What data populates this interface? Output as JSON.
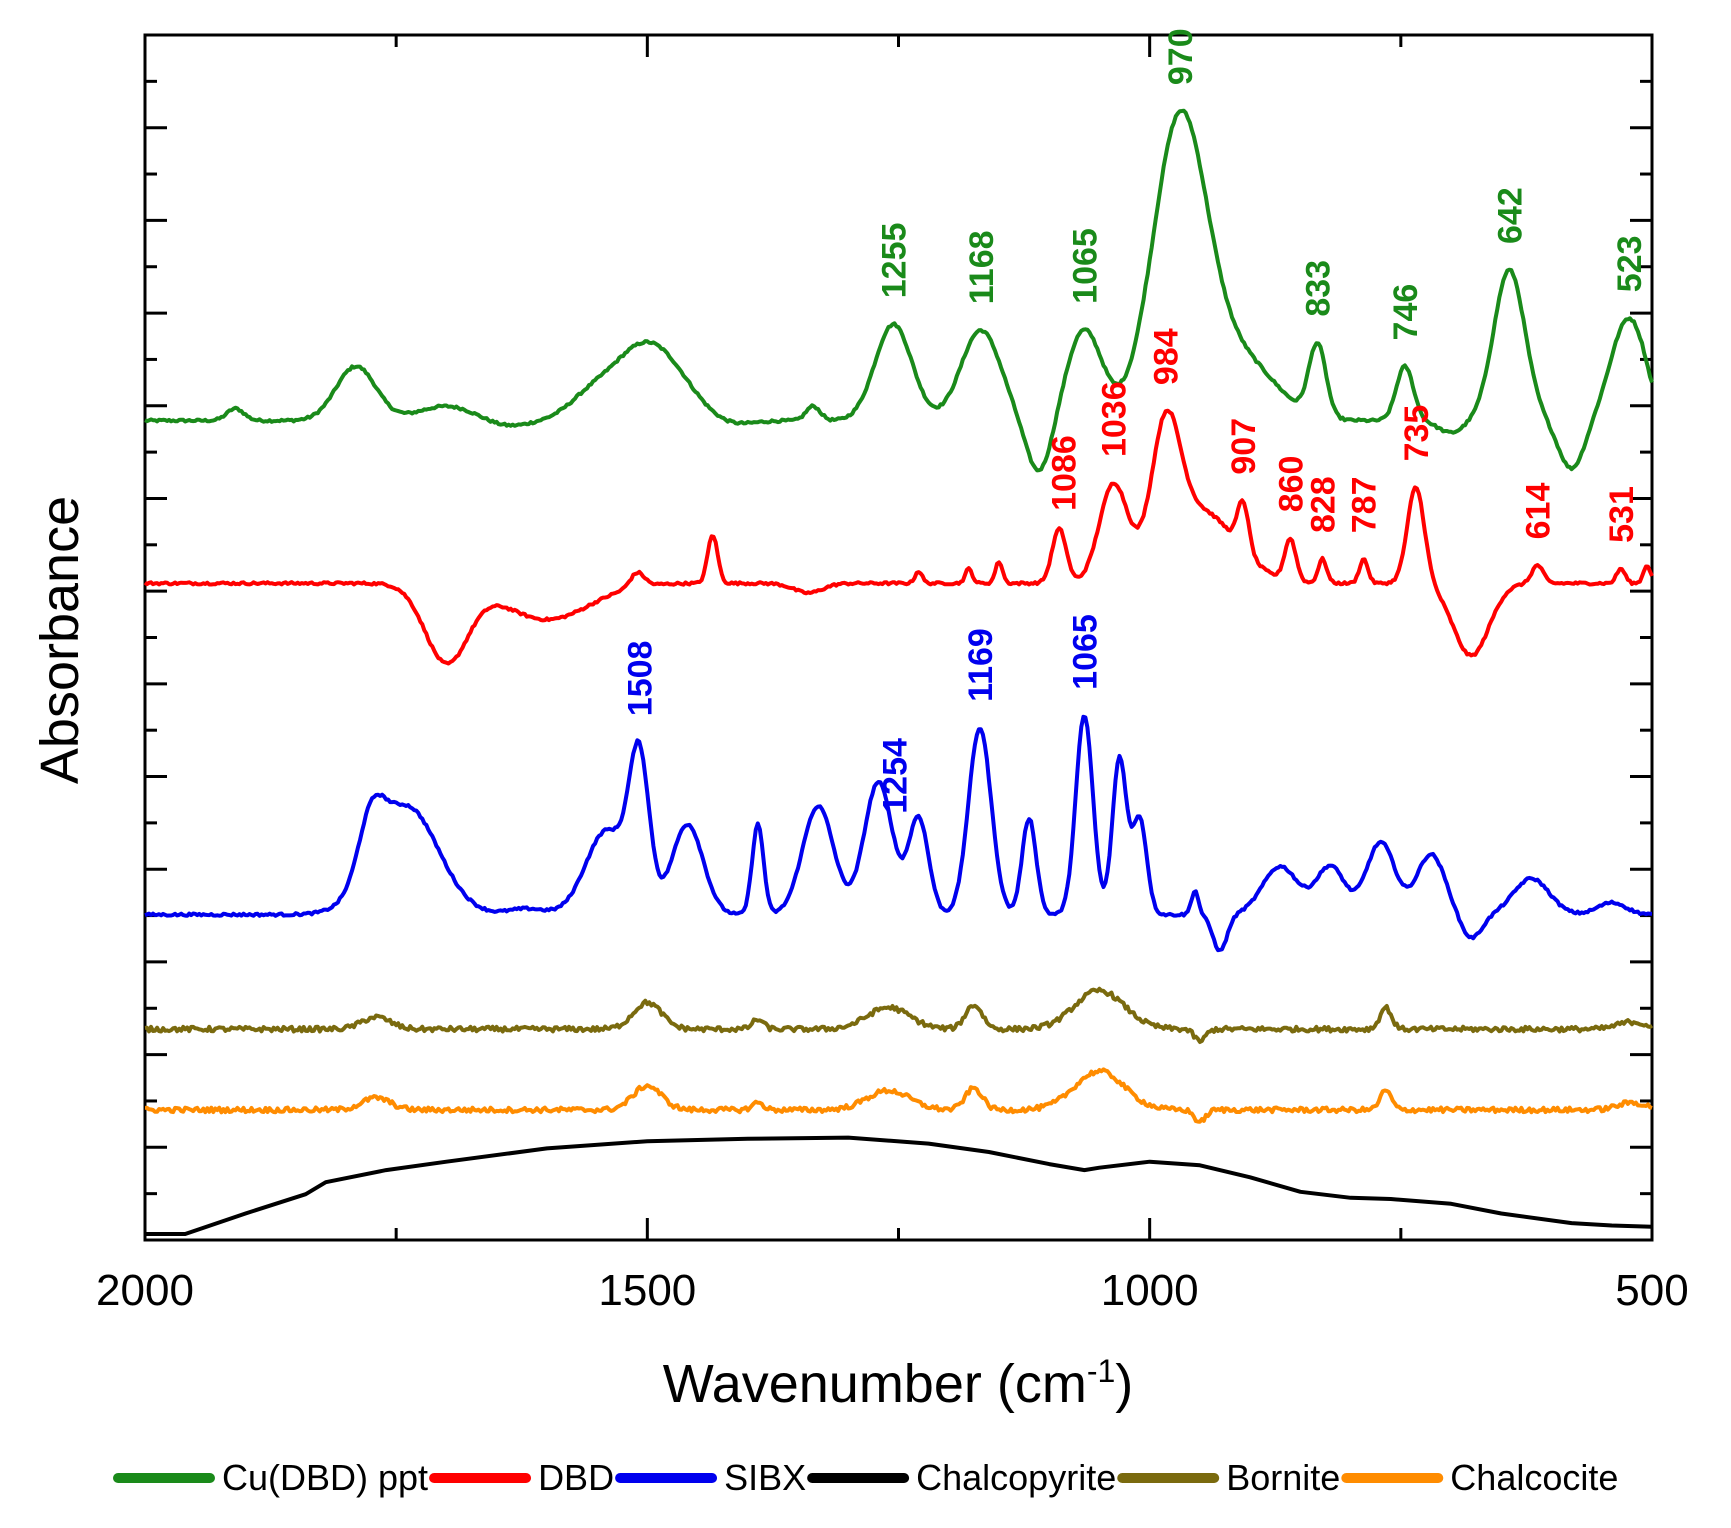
{
  "chart_data": {
    "type": "line",
    "xlabel": "Wavenumber (cm",
    "xlabel_sup": "-1",
    "xlabel_end": ")",
    "ylabel": "Absorbance",
    "xlim": [
      2000,
      500
    ],
    "ylim": [
      0,
      1
    ],
    "x_ticks": [
      "2000",
      "1500",
      "1000",
      "500"
    ],
    "x_tick_values": [
      2000,
      1500,
      1000,
      500
    ],
    "legend_position": "bottom",
    "series": [
      {
        "name": "Cu(DBD) ppt",
        "color": "#1a8a1a",
        "baseline": 0.68,
        "noise": 0.002,
        "features": [
          [
            1910,
            0.01,
            12
          ],
          [
            1790,
            0.045,
            28
          ],
          [
            1700,
            0.012,
            40
          ],
          [
            1640,
            -0.005,
            30
          ],
          [
            1560,
            0.012,
            30
          ],
          [
            1500,
            0.065,
            50
          ],
          [
            1420,
            -0.005,
            30
          ],
          [
            1335,
            0.012,
            10
          ],
          [
            1255,
            0.08,
            26
          ],
          [
            1168,
            0.075,
            28
          ],
          [
            1110,
            -0.045,
            18
          ],
          [
            1065,
            0.075,
            25
          ],
          [
            970,
            0.245,
            38
          ],
          [
            910,
            0.05,
            50
          ],
          [
            833,
            0.06,
            12
          ],
          [
            746,
            0.045,
            12
          ],
          [
            700,
            -0.01,
            18
          ],
          [
            642,
            0.125,
            22
          ],
          [
            580,
            -0.04,
            18
          ],
          [
            523,
            0.085,
            25
          ],
          [
            500,
            -0.005,
            8
          ]
        ],
        "peaks": [
          "1255",
          "1168",
          "1065",
          "970",
          "833",
          "746",
          "642",
          "523"
        ],
        "peak_positions": [
          1255,
          1168,
          1065,
          970,
          833,
          746,
          642,
          523
        ]
      },
      {
        "name": "DBD",
        "color": "#ff0000",
        "baseline": 0.545,
        "noise": 0.002,
        "features": [
          [
            1700,
            -0.065,
            30
          ],
          [
            1600,
            -0.03,
            60
          ],
          [
            1510,
            0.012,
            10
          ],
          [
            1435,
            0.04,
            7
          ],
          [
            1340,
            -0.008,
            20
          ],
          [
            1230,
            0.01,
            5
          ],
          [
            1180,
            0.012,
            5
          ],
          [
            1150,
            0.018,
            5
          ],
          [
            1090,
            0.045,
            10
          ],
          [
            1036,
            0.08,
            20
          ],
          [
            984,
            0.105,
            20
          ],
          [
            950,
            0.06,
            50
          ],
          [
            907,
            0.04,
            8
          ],
          [
            860,
            0.035,
            8
          ],
          [
            828,
            0.02,
            6
          ],
          [
            787,
            0.02,
            6
          ],
          [
            735,
            0.08,
            12
          ],
          [
            680,
            -0.06,
            25
          ],
          [
            614,
            0.015,
            8
          ],
          [
            531,
            0.012,
            6
          ],
          [
            505,
            0.015,
            5
          ]
        ],
        "peaks": [
          "1086",
          "1036",
          "984",
          "907",
          "860",
          "828",
          "787",
          "735",
          "614",
          "531"
        ],
        "peak_positions": [
          1086,
          1036,
          984,
          907,
          860,
          828,
          787,
          735,
          614,
          531
        ]
      },
      {
        "name": "SIBX",
        "color": "#0000ee",
        "baseline": 0.27,
        "noise": 0.002,
        "features": [
          [
            1775,
            0.045,
            18
          ],
          [
            1740,
            0.09,
            45
          ],
          [
            1620,
            0.005,
            25
          ],
          [
            1540,
            0.07,
            30
          ],
          [
            1508,
            0.12,
            14
          ],
          [
            1460,
            0.075,
            22
          ],
          [
            1390,
            0.075,
            8
          ],
          [
            1330,
            0.09,
            22
          ],
          [
            1270,
            0.11,
            20
          ],
          [
            1230,
            0.08,
            14
          ],
          [
            1169,
            0.155,
            16
          ],
          [
            1120,
            0.08,
            10
          ],
          [
            1065,
            0.165,
            12
          ],
          [
            1030,
            0.13,
            10
          ],
          [
            1010,
            0.08,
            10
          ],
          [
            955,
            0.02,
            5
          ],
          [
            930,
            -0.03,
            10
          ],
          [
            870,
            0.04,
            25
          ],
          [
            820,
            0.04,
            20
          ],
          [
            770,
            0.06,
            20
          ],
          [
            720,
            0.05,
            20
          ],
          [
            680,
            -0.02,
            15
          ],
          [
            620,
            0.03,
            25
          ],
          [
            540,
            0.01,
            20
          ]
        ],
        "peaks": [
          "1508",
          "1254",
          "1169",
          "1065"
        ],
        "peak_positions": [
          1508,
          1254,
          1169,
          1065
        ]
      },
      {
        "name": "Bornite",
        "color": "#7a6a0e",
        "baseline": 0.175,
        "noise": 0.004,
        "features": [
          [
            1770,
            0.01,
            20
          ],
          [
            1500,
            0.022,
            20
          ],
          [
            1390,
            0.008,
            8
          ],
          [
            1260,
            0.018,
            30
          ],
          [
            1175,
            0.02,
            12
          ],
          [
            1050,
            0.032,
            35
          ],
          [
            950,
            -0.01,
            8
          ],
          [
            765,
            0.018,
            8
          ],
          [
            520,
            0.006,
            20
          ]
        ],
        "peaks": [],
        "peak_positions": []
      },
      {
        "name": "Chalcocite",
        "color": "#ff8c00",
        "baseline": 0.108,
        "noise": 0.004,
        "features": [
          [
            1770,
            0.01,
            20
          ],
          [
            1500,
            0.02,
            20
          ],
          [
            1390,
            0.006,
            8
          ],
          [
            1260,
            0.016,
            30
          ],
          [
            1175,
            0.018,
            12
          ],
          [
            1050,
            0.032,
            35
          ],
          [
            950,
            -0.01,
            8
          ],
          [
            765,
            0.016,
            8
          ],
          [
            520,
            0.006,
            20
          ]
        ],
        "peaks": [],
        "peak_positions": []
      },
      {
        "name": "Chalcopyrite",
        "color": "#000000",
        "baseline": 0.0,
        "noise": 0.0,
        "points": [
          [
            2000,
            0.005
          ],
          [
            1960,
            0.005
          ],
          [
            1900,
            0.022
          ],
          [
            1840,
            0.038
          ],
          [
            1820,
            0.048
          ],
          [
            1760,
            0.058
          ],
          [
            1700,
            0.065
          ],
          [
            1600,
            0.076
          ],
          [
            1500,
            0.082
          ],
          [
            1400,
            0.084
          ],
          [
            1300,
            0.085
          ],
          [
            1220,
            0.08
          ],
          [
            1160,
            0.073
          ],
          [
            1100,
            0.063
          ],
          [
            1065,
            0.058
          ],
          [
            1050,
            0.06
          ],
          [
            1000,
            0.065
          ],
          [
            950,
            0.062
          ],
          [
            900,
            0.052
          ],
          [
            850,
            0.04
          ],
          [
            800,
            0.035
          ],
          [
            760,
            0.034
          ],
          [
            700,
            0.03
          ],
          [
            650,
            0.022
          ],
          [
            580,
            0.014
          ],
          [
            540,
            0.012
          ],
          [
            500,
            0.011
          ]
        ],
        "peaks": [],
        "peak_positions": []
      }
    ]
  }
}
